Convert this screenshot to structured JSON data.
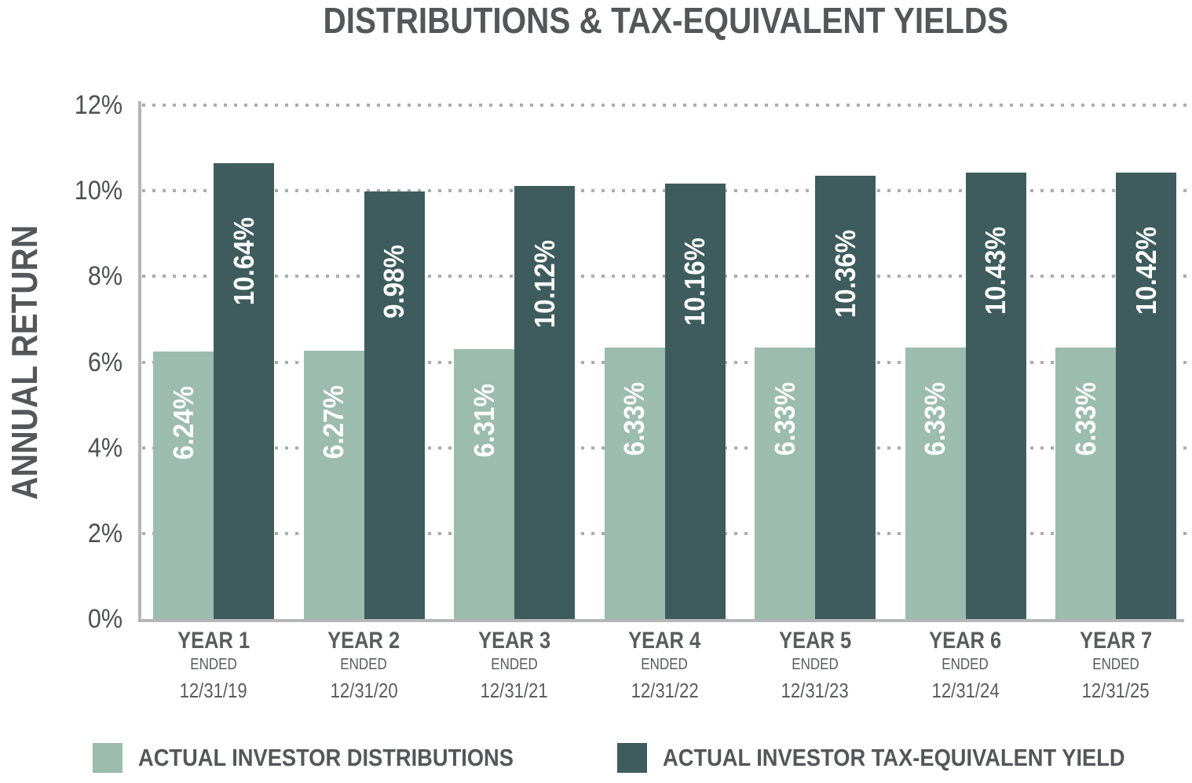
{
  "chart_data": {
    "type": "bar",
    "title": "DISTRIBUTIONS & TAX-EQUIVALENT YIELDS",
    "xlabel": "",
    "ylabel": "ANNUAL RETURN",
    "ylim": [
      0,
      12
    ],
    "y_ticks": [
      12,
      10,
      8,
      6,
      4,
      2,
      0
    ],
    "y_tick_labels": [
      "12%",
      "10%",
      "8%",
      "6%",
      "4%",
      "2%",
      "0%"
    ],
    "grid": "dotted-horizontal",
    "legend_position": "bottom",
    "value_label_color": "#ffffff",
    "categories": [
      {
        "year": "YEAR 1",
        "sub": "ENDED",
        "date": "12/31/19"
      },
      {
        "year": "YEAR 2",
        "sub": "ENDED",
        "date": "12/31/20"
      },
      {
        "year": "YEAR 3",
        "sub": "ENDED",
        "date": "12/31/21"
      },
      {
        "year": "YEAR 4",
        "sub": "ENDED",
        "date": "12/31/22"
      },
      {
        "year": "YEAR 5",
        "sub": "ENDED",
        "date": "12/31/23"
      },
      {
        "year": "YEAR 6",
        "sub": "ENDED",
        "date": "12/31/24"
      },
      {
        "year": "YEAR 7",
        "sub": "ENDED",
        "date": "12/31/25"
      }
    ],
    "series": [
      {
        "name": "ACTUAL INVESTOR DISTRIBUTIONS",
        "color": "#9cbcad",
        "values": [
          6.24,
          6.27,
          6.31,
          6.33,
          6.33,
          6.33,
          6.33
        ],
        "labels": [
          "6.24%",
          "6.27%",
          "6.31%",
          "6.33%",
          "6.33%",
          "6.33%",
          "6.33%"
        ]
      },
      {
        "name": "ACTUAL INVESTOR TAX-EQUIVALENT YIELD",
        "color": "#3e5c5d",
        "values": [
          10.64,
          9.98,
          10.12,
          10.16,
          10.36,
          10.43,
          10.42
        ],
        "labels": [
          "10.64%",
          "9.98%",
          "10.12%",
          "10.16%",
          "10.36%",
          "10.43%",
          "10.42%"
        ]
      }
    ],
    "colors": {
      "title_text": "#54565a",
      "axis_text": "#4e5054",
      "xlabel_text": "#5a5c5e",
      "legend_text": "#54565a",
      "axis_line": "#b4b6b8",
      "gridline_dot": "#aaacae"
    }
  }
}
